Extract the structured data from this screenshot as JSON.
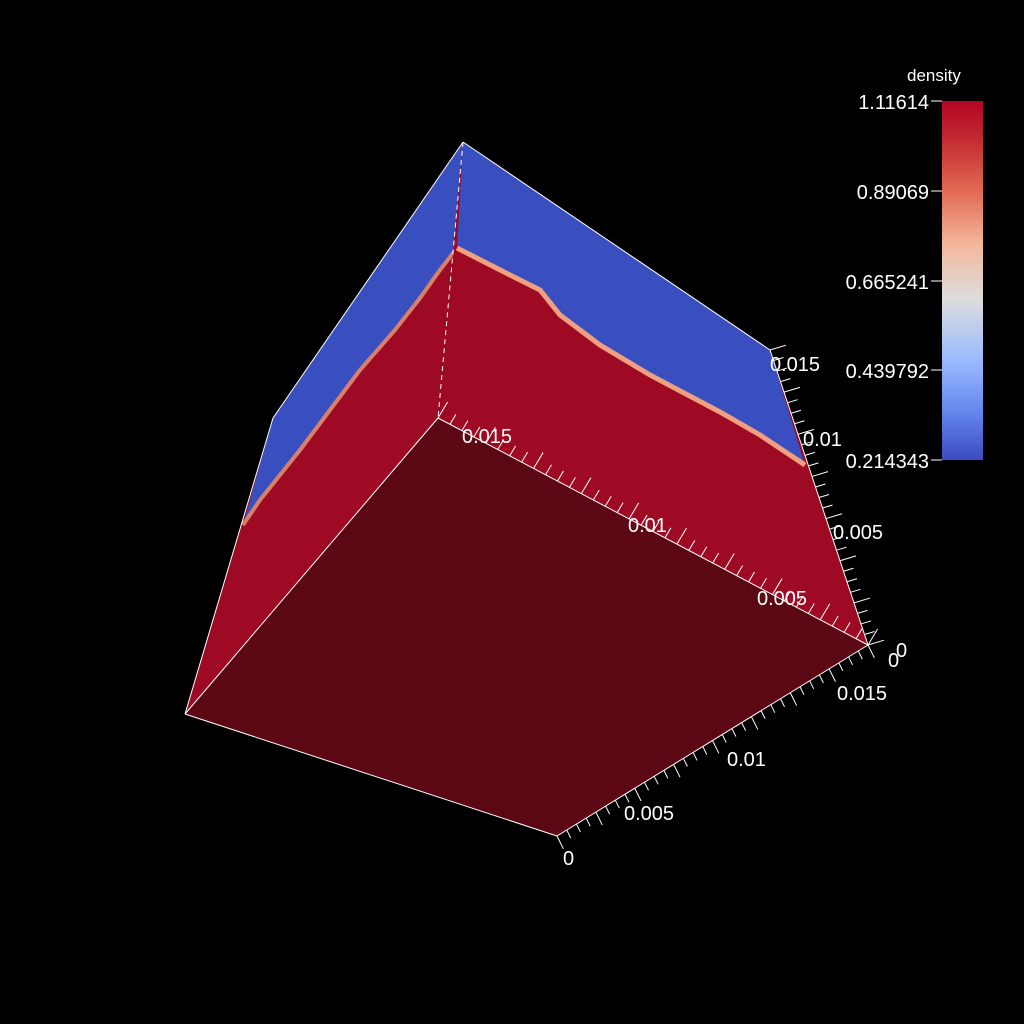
{
  "colorbar": {
    "title": "density",
    "ticks": [
      "1.11614",
      "0.89069",
      "0.665241",
      "0.439792",
      "0.214343"
    ],
    "range": [
      0.214343,
      1.11614
    ],
    "colors": [
      "#3b4cc0",
      "#6788ee",
      "#9abbff",
      "#c9d7f0",
      "#edd1c2",
      "#f7a889",
      "#e26952",
      "#b40426"
    ]
  },
  "axes": {
    "left_axis": {
      "ticks": [
        "0.015",
        "0.01",
        "0.005"
      ]
    },
    "right_axis": {
      "ticks": [
        "0.015",
        "0.01",
        "0.005",
        "0"
      ]
    },
    "bottom_axis": {
      "ticks": [
        "0",
        "0.005",
        "0.01",
        "0.015"
      ]
    },
    "corner_label": "0"
  },
  "scene": {
    "background": "#000000",
    "high_density_color": "#9e0a24",
    "low_density_color": "#3a4fbf",
    "bottom_face_color": "#5c0714"
  }
}
